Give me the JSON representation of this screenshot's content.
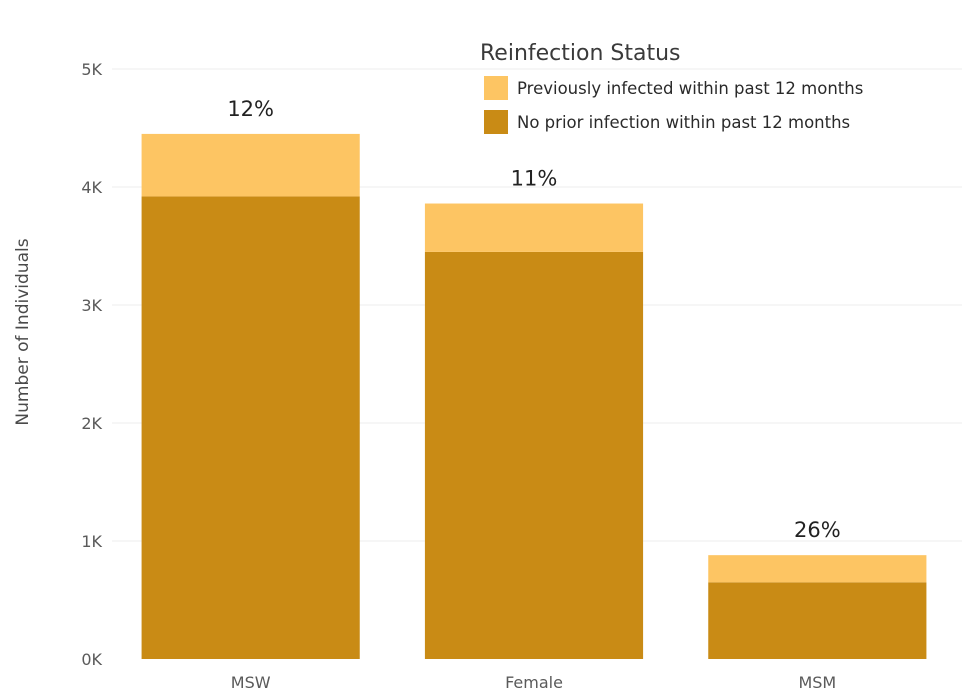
{
  "chart_data": {
    "type": "bar",
    "stacked": true,
    "categories": [
      "MSW",
      "Female",
      "MSM"
    ],
    "series": [
      {
        "name": "No prior infection within past 12 months",
        "color": "#c98b15",
        "values": [
          3920,
          3450,
          650
        ]
      },
      {
        "name": "Previously infected within past 12 months",
        "color": "#fdc563",
        "values": [
          530,
          410,
          230
        ]
      }
    ],
    "bar_labels": [
      "12%",
      "11%",
      "26%"
    ],
    "ylabel": "Number of Individuals",
    "xlabel": "",
    "ylim": [
      0,
      5000
    ],
    "yticks": [
      0,
      1000,
      2000,
      3000,
      4000,
      5000
    ],
    "ytick_labels": [
      "0K",
      "1K",
      "2K",
      "3K",
      "4K",
      "5K"
    ],
    "grid": true,
    "legend": {
      "title": "Reinfection Status",
      "placement": "top-right",
      "entries": [
        {
          "label": "Previously infected within past 12 months",
          "color": "#fdc563"
        },
        {
          "label": "No prior infection within past 12 months",
          "color": "#c98b15"
        }
      ]
    }
  }
}
